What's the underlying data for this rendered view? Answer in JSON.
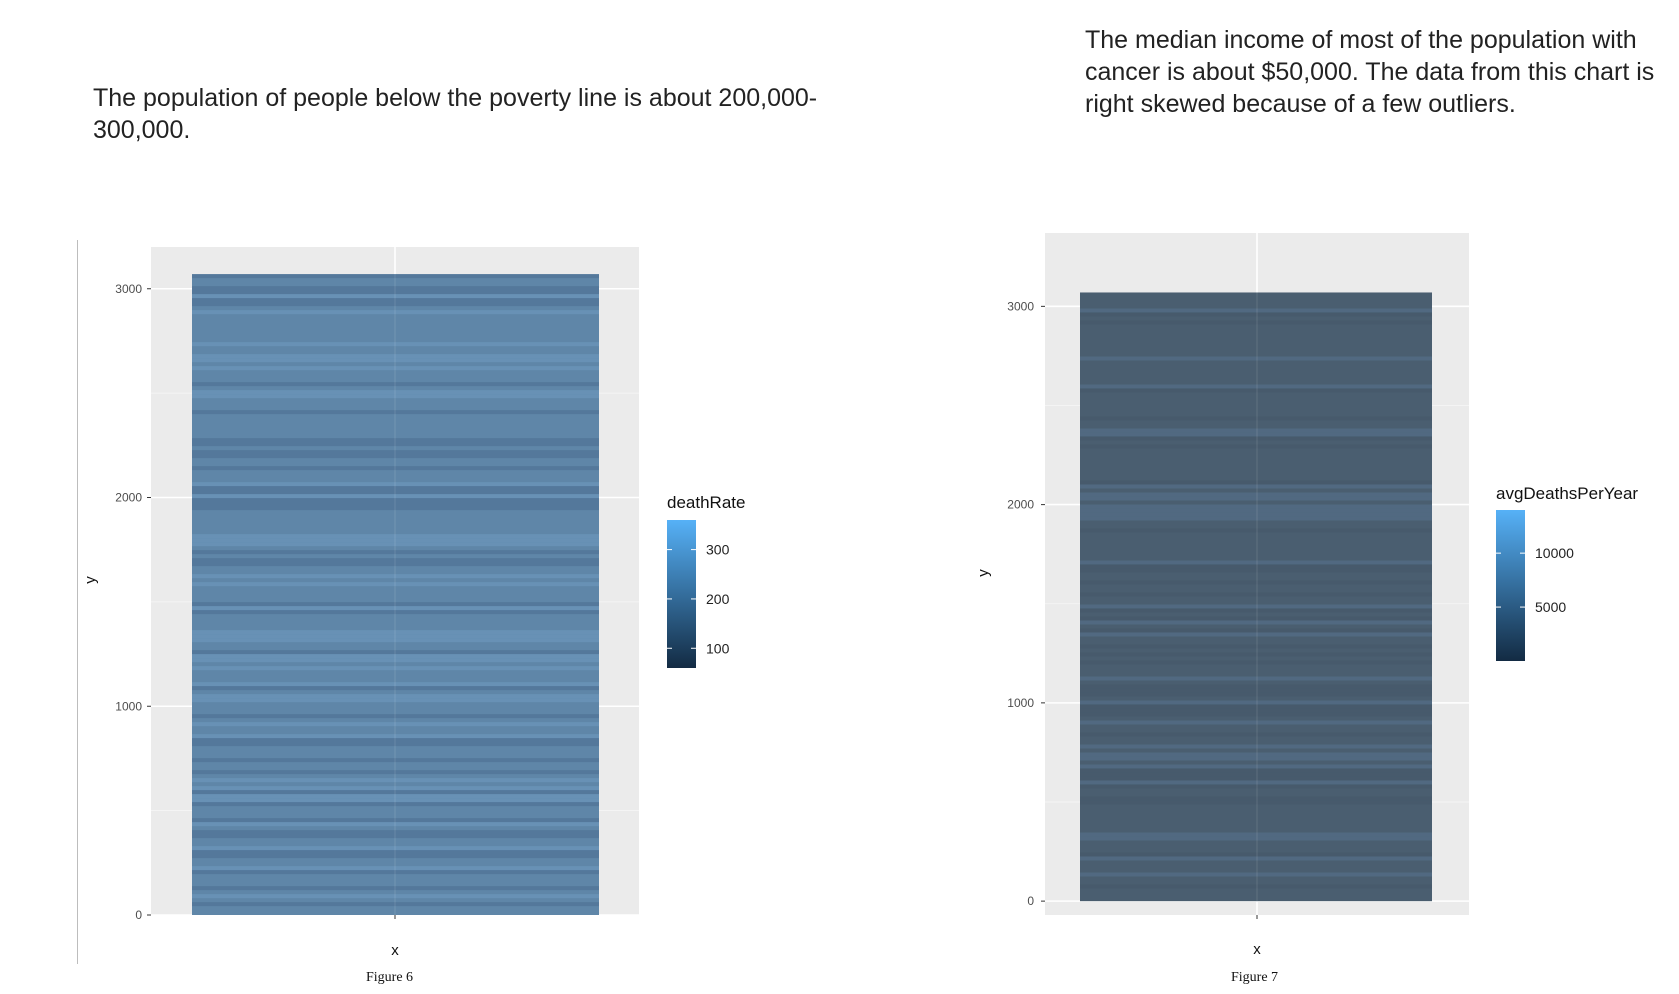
{
  "captions": {
    "left": "The population of people below the poverty line is about 200,000-300,000.",
    "right": "The median income of most of the population with cancer is about $50,000. The data from this chart is right skewed because of a few outliers."
  },
  "figures": {
    "left_label": "Figure 6",
    "right_label": "Figure 7"
  },
  "chart_data": [
    {
      "type": "bar",
      "xlabel": "x",
      "ylabel": "y",
      "ylim": [
        0,
        3200
      ],
      "yticks": [
        0,
        1000,
        2000,
        3000
      ],
      "x_total": 3070,
      "fill_variable": "deathRate",
      "legend": {
        "title": "deathRate",
        "ticks": [
          100,
          200,
          300
        ],
        "range": [
          60,
          360
        ],
        "position": "right"
      },
      "colors": {
        "low": "#132b43",
        "high": "#56b1f7",
        "typical": "#5f86a8",
        "dark_band": "#4a6e8f",
        "light_band": "#6f9ac0"
      },
      "grid": true
    },
    {
      "type": "bar",
      "xlabel": "x",
      "ylabel": "y",
      "ylim": [
        -70,
        3370
      ],
      "yticks": [
        0,
        1000,
        2000,
        3000
      ],
      "x_total": 3070,
      "fill_variable": "avgDeathsPerYear",
      "legend": {
        "title": "avgDeathsPerYear",
        "ticks": [
          5000,
          10000
        ],
        "range": [
          0,
          14000
        ],
        "position": "right"
      },
      "colors": {
        "low": "#132b43",
        "high": "#56b1f7",
        "typical": "#4a5e70",
        "dark_band": "#45586a",
        "light_band": "#58738f"
      },
      "grid": true
    }
  ]
}
